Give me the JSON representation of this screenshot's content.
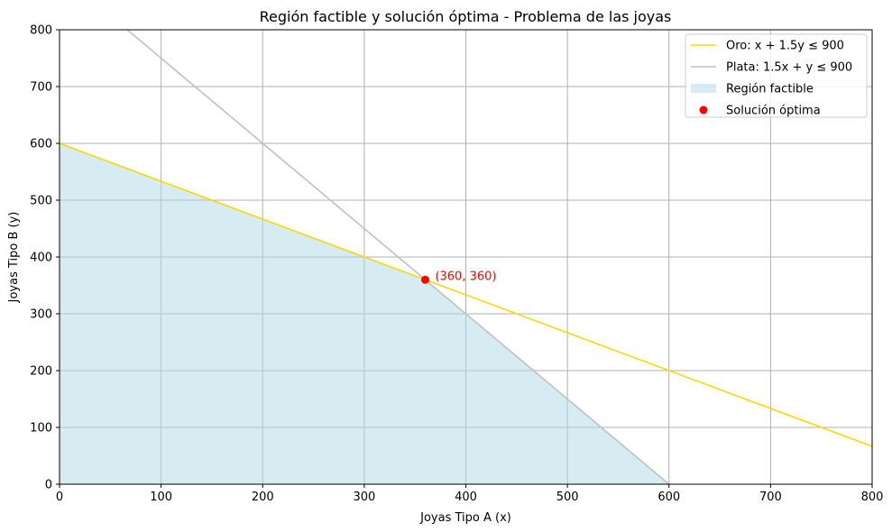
{
  "chart_data": {
    "type": "line",
    "title": "Región factible y solución óptima - Problema de las joyas",
    "xlabel": "Joyas Tipo A (x)",
    "ylabel": "Joyas Tipo B (y)",
    "xlim": [
      0,
      800
    ],
    "ylim": [
      0,
      800
    ],
    "xticks": [
      0,
      100,
      200,
      300,
      400,
      500,
      600,
      700,
      800
    ],
    "yticks": [
      0,
      100,
      200,
      300,
      400,
      500,
      600,
      700,
      800
    ],
    "grid": true,
    "legend_position": "top-right",
    "series": [
      {
        "name": "Oro: x + 1.5y ≤ 900",
        "kind": "line",
        "color": "#FFD700",
        "x": [
          0,
          800
        ],
        "y": [
          600,
          66.67
        ]
      },
      {
        "name": "Plata: 1.5x + y ≤ 900",
        "kind": "line",
        "color": "#C0C0C0",
        "x": [
          66.67,
          600
        ],
        "y": [
          800,
          0
        ]
      },
      {
        "name": "Región factible",
        "kind": "area",
        "color": "#ADD8E6",
        "x": [
          0,
          0,
          360,
          600
        ],
        "y": [
          0,
          600,
          360,
          0
        ]
      },
      {
        "name": "Solución óptima",
        "kind": "point",
        "color": "#FF0000",
        "x": [
          360
        ],
        "y": [
          360
        ]
      }
    ],
    "annotations": [
      {
        "text": "(360, 360)",
        "x": 360,
        "y": 360,
        "color": "#FF0000"
      }
    ]
  }
}
